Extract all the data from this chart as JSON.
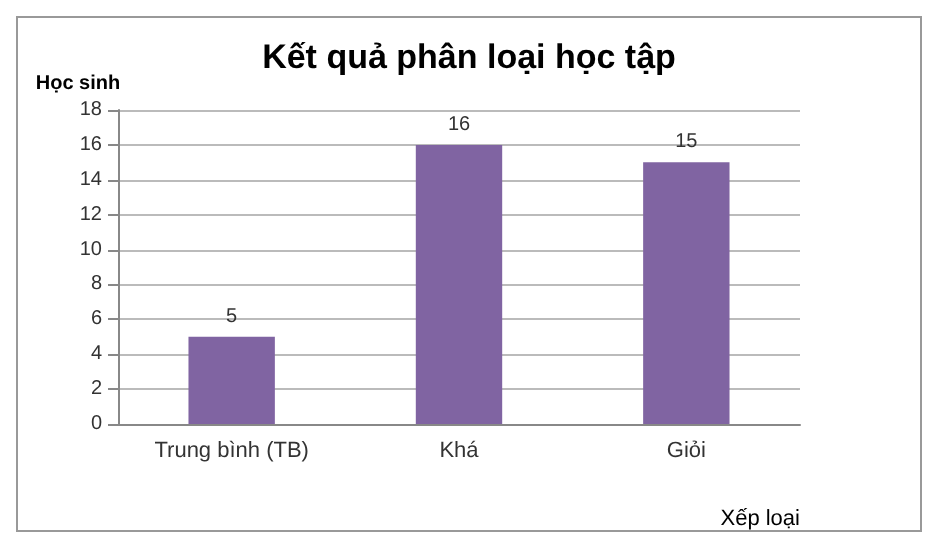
{
  "chart_data": {
    "type": "bar",
    "title": "Kết quả phân loại học tập",
    "xlabel": "Xếp loại",
    "ylabel": "Học sinh",
    "categories": [
      "Trung bình (TB)",
      "Khá",
      "Giỏi"
    ],
    "values": [
      5,
      16,
      15
    ],
    "color": "#8064a2",
    "ylim": [
      0,
      18
    ],
    "yticks": [
      0,
      2,
      4,
      6,
      8,
      10,
      12,
      14,
      16,
      18
    ],
    "grid": "y",
    "data_labels": true
  }
}
